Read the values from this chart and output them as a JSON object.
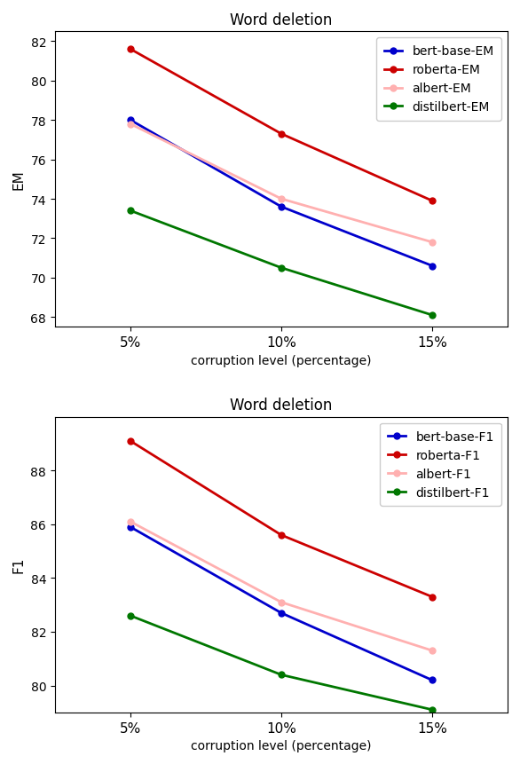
{
  "x_labels": [
    "5%",
    "10%",
    "15%"
  ],
  "x_values": [
    5,
    10,
    15
  ],
  "top": {
    "title": "Word deletion",
    "ylabel": "EM",
    "xlabel": "corruption level (percentage)",
    "ylim": [
      67.5,
      82.5
    ],
    "yticks": [
      68,
      70,
      72,
      74,
      76,
      78,
      80,
      82
    ],
    "xlim": [
      2.5,
      17.5
    ],
    "series": [
      {
        "label": "bert-base-EM",
        "color": "#0000cc",
        "values": [
          78.0,
          73.6,
          70.6
        ]
      },
      {
        "label": "roberta-EM",
        "color": "#cc0000",
        "values": [
          81.6,
          77.3,
          73.9
        ]
      },
      {
        "label": "albert-EM",
        "color": "#ffb0b0",
        "values": [
          77.8,
          74.0,
          71.8
        ]
      },
      {
        "label": "distilbert-EM",
        "color": "#007700",
        "values": [
          73.4,
          70.5,
          68.1
        ]
      }
    ]
  },
  "bottom": {
    "title": "Word deletion",
    "ylabel": "F1",
    "xlabel": "corruption level (percentage)",
    "ylim": [
      79.0,
      90.0
    ],
    "yticks": [
      80,
      82,
      84,
      86,
      88
    ],
    "xlim": [
      2.5,
      17.5
    ],
    "series": [
      {
        "label": "bert-base-F1",
        "color": "#0000cc",
        "values": [
          85.9,
          82.7,
          80.2
        ]
      },
      {
        "label": "roberta-F1",
        "color": "#cc0000",
        "values": [
          89.1,
          85.6,
          83.3
        ]
      },
      {
        "label": "albert-F1",
        "color": "#ffb0b0",
        "values": [
          86.1,
          83.1,
          81.3
        ]
      },
      {
        "label": "distilbert-F1",
        "color": "#007700",
        "values": [
          82.6,
          80.4,
          79.1
        ]
      }
    ]
  }
}
